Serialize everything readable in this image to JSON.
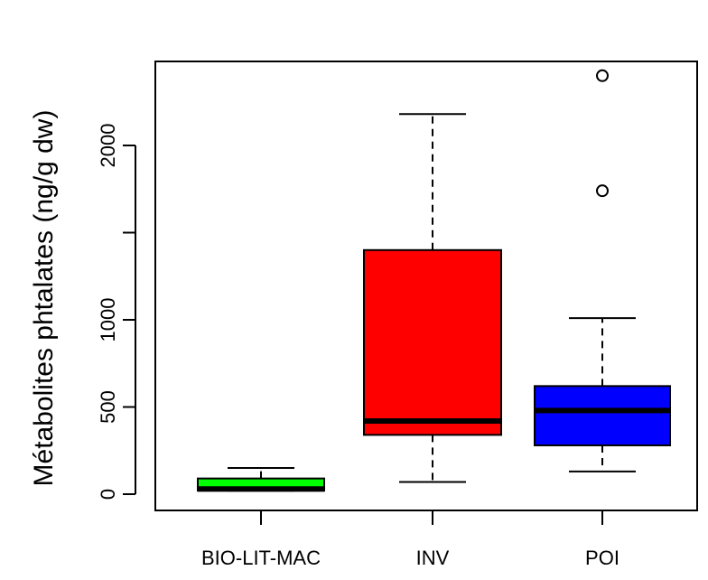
{
  "chart_data": {
    "type": "boxplot",
    "ylabel": "Métabolites  phtalates (ng/g dw)",
    "xlabel": "",
    "categories": [
      "BIO-LIT-MAC",
      "INV",
      "POI"
    ],
    "ylim": [
      -60,
      2500
    ],
    "yticks": [
      0,
      500,
      1000,
      2000
    ],
    "yticks_minor": [
      1500
    ],
    "ytick_labels": [
      "0",
      "500",
      "1000",
      "2000"
    ],
    "boxes": [
      {
        "name": "BIO-LIT-MAC",
        "color": "#00ff00",
        "whisker_low": 20,
        "q1": 20,
        "median": 30,
        "q3": 90,
        "whisker_high": 150,
        "outliers": []
      },
      {
        "name": "INV",
        "color": "#ff0000",
        "whisker_low": 70,
        "q1": 340,
        "median": 420,
        "q3": 1400,
        "whisker_high": 2180,
        "outliers": []
      },
      {
        "name": "POI",
        "color": "#0000ff",
        "whisker_low": 130,
        "q1": 280,
        "median": 480,
        "q3": 620,
        "whisker_high": 1010,
        "outliers": [
          1740,
          2400
        ]
      }
    ],
    "grid": false
  }
}
